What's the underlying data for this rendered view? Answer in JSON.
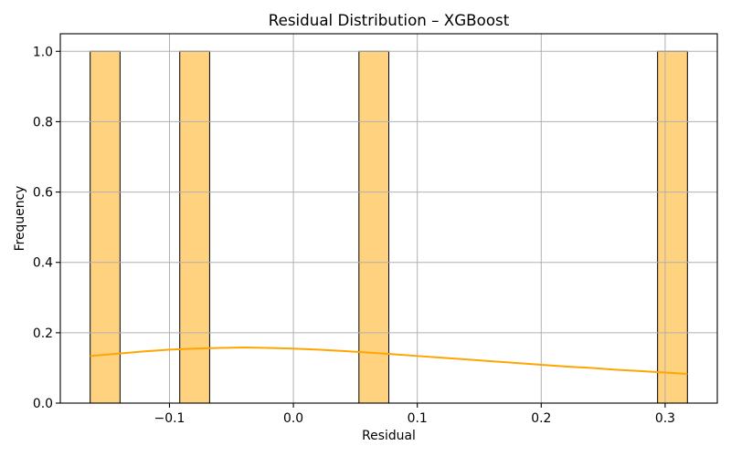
{
  "chart_data": {
    "type": "bar",
    "title": "Residual Distribution – XGBoost",
    "xlabel": "Residual",
    "ylabel": "Frequency",
    "xlim": [
      -0.1881,
      0.3421
    ],
    "ylim": [
      0,
      1.05
    ],
    "xticks": [
      -0.1,
      0.0,
      0.1,
      0.2,
      0.3
    ],
    "xtick_labels": [
      "−0.1",
      "0.0",
      "0.1",
      "0.2",
      "0.3"
    ],
    "yticks": [
      0.0,
      0.2,
      0.4,
      0.6,
      0.8,
      1.0
    ],
    "ytick_labels": [
      "0.0",
      "0.2",
      "0.4",
      "0.6",
      "0.8",
      "1.0"
    ],
    "grid": true,
    "bin_edges": [
      -0.164,
      -0.1399,
      -0.1158,
      -0.0917,
      -0.0676,
      -0.0435,
      -0.0194,
      0.0047,
      0.0288,
      0.0529,
      0.077,
      0.1011,
      0.1252,
      0.1493,
      0.1734,
      0.1975,
      0.2216,
      0.2457,
      0.2698,
      0.2939,
      0.318
    ],
    "counts": [
      1,
      0,
      0,
      1,
      0,
      0,
      0,
      0,
      0,
      1,
      0,
      0,
      0,
      0,
      0,
      0,
      0,
      0,
      0,
      1
    ],
    "kde": {
      "x": [
        -0.164,
        -0.14,
        -0.12,
        -0.1,
        -0.08,
        -0.06,
        -0.04,
        -0.02,
        0.0,
        0.02,
        0.04,
        0.06,
        0.08,
        0.1,
        0.12,
        0.14,
        0.16,
        0.18,
        0.2,
        0.22,
        0.24,
        0.26,
        0.28,
        0.3,
        0.318
      ],
      "y": [
        0.134,
        0.141,
        0.147,
        0.152,
        0.155,
        0.157,
        0.158,
        0.157,
        0.155,
        0.152,
        0.148,
        0.144,
        0.139,
        0.134,
        0.129,
        0.124,
        0.119,
        0.114,
        0.109,
        0.104,
        0.1,
        0.095,
        0.091,
        0.087,
        0.083
      ]
    },
    "colors": {
      "bar_fill": "#FFD280",
      "bar_edge": "#000000",
      "kde": "#FFA500",
      "grid": "#B0B0B0",
      "axes": "#000000"
    }
  }
}
